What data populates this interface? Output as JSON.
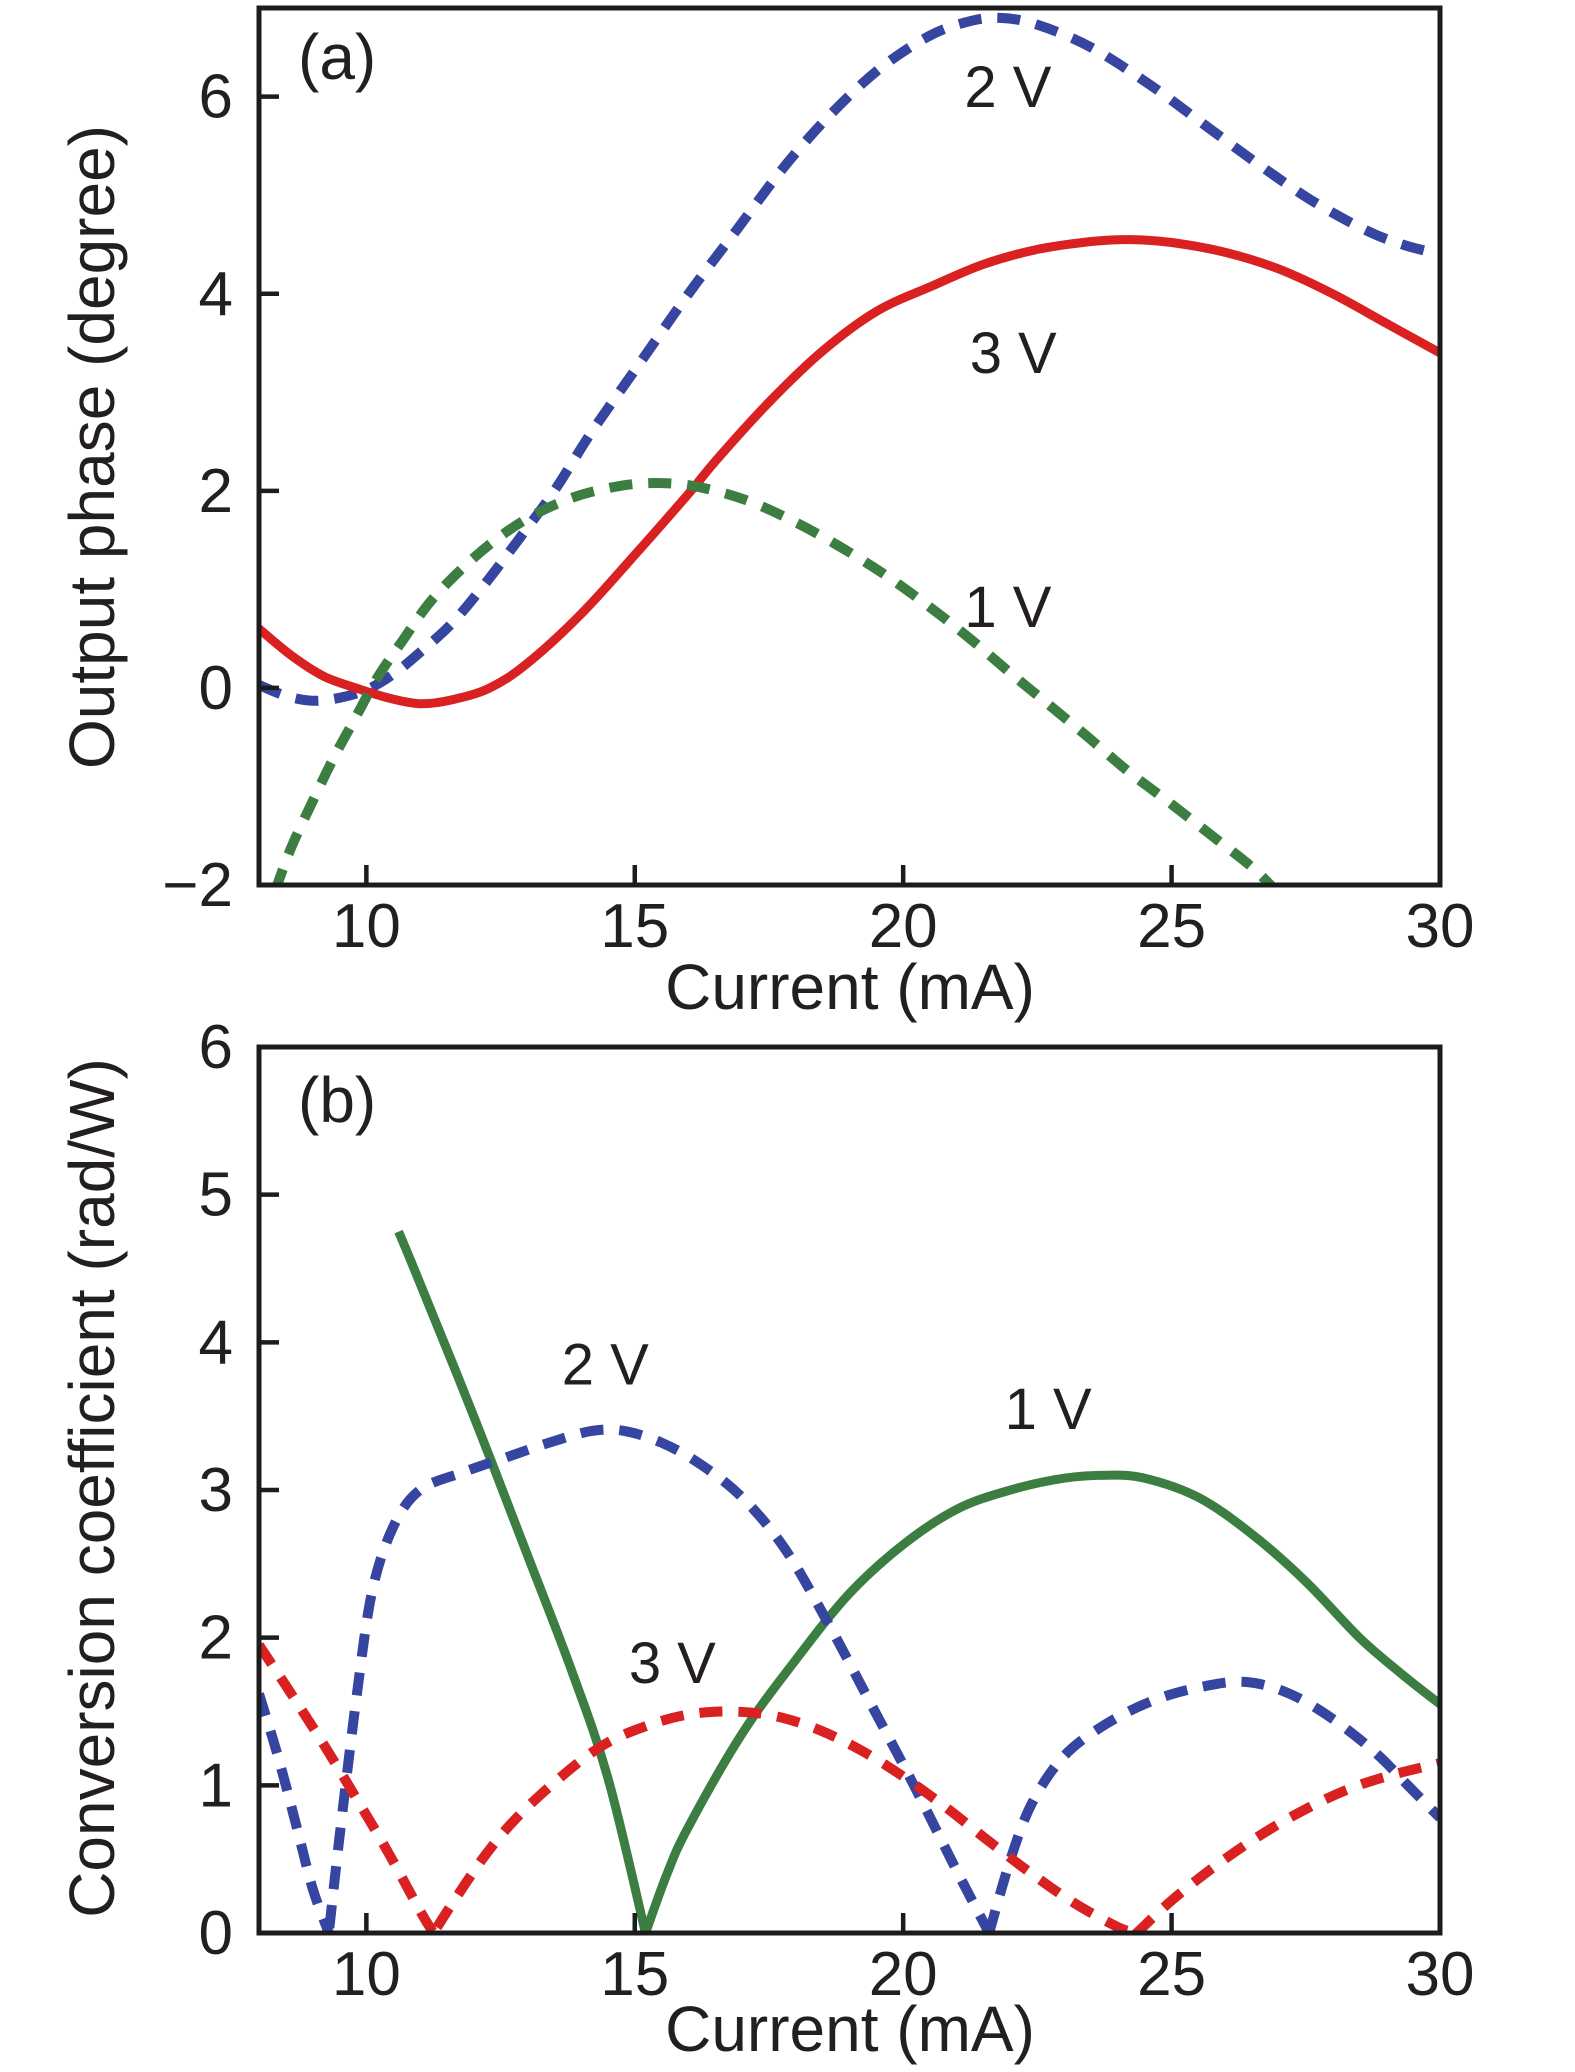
{
  "chart_data": [
    {
      "type": "line",
      "panel_label": "(a)",
      "xlabel": "Current (mA)",
      "ylabel": "Output phase (degree)",
      "xlim": [
        8,
        30
      ],
      "ylim": [
        -2,
        6.9
      ],
      "xticks": [
        10,
        15,
        20,
        25,
        30
      ],
      "xtick_labels": [
        "10",
        "15",
        "20",
        "25",
        "30"
      ],
      "yticks": [
        -2,
        0,
        2,
        4,
        6
      ],
      "ytick_labels": [
        "−2",
        "0",
        "2",
        "4",
        "6"
      ],
      "grid": false,
      "legend": "inline-annotations",
      "series": [
        {
          "name": "2 V",
          "color": "#3645a0",
          "dashed": true,
          "points": [
            [
              8,
              0.03
            ],
            [
              8.5,
              -0.08
            ],
            [
              9,
              -0.13
            ],
            [
              9.5,
              -0.1
            ],
            [
              10,
              -0.02
            ],
            [
              10.5,
              0.14
            ],
            [
              11,
              0.36
            ],
            [
              11.6,
              0.66
            ],
            [
              12.2,
              1.05
            ],
            [
              12.8,
              1.48
            ],
            [
              13.5,
              2.0
            ],
            [
              14.2,
              2.6
            ],
            [
              15.1,
              3.3
            ],
            [
              16,
              4.0
            ],
            [
              16.9,
              4.65
            ],
            [
              17.8,
              5.3
            ],
            [
              18.7,
              5.85
            ],
            [
              19.6,
              6.3
            ],
            [
              20.5,
              6.62
            ],
            [
              21.2,
              6.76
            ],
            [
              21.8,
              6.8
            ],
            [
              22.5,
              6.73
            ],
            [
              23.5,
              6.5
            ],
            [
              24.6,
              6.12
            ],
            [
              25.6,
              5.72
            ],
            [
              26.6,
              5.32
            ],
            [
              27.6,
              4.95
            ],
            [
              28.6,
              4.65
            ],
            [
              29.3,
              4.5
            ],
            [
              30,
              4.4
            ]
          ]
        },
        {
          "name": "3 V",
          "color": "#d92121",
          "dashed": false,
          "points": [
            [
              8,
              0.6
            ],
            [
              8.6,
              0.33
            ],
            [
              9.2,
              0.12
            ],
            [
              9.8,
              0
            ],
            [
              10.4,
              -0.1
            ],
            [
              11,
              -0.16
            ],
            [
              11.6,
              -0.12
            ],
            [
              12.3,
              0
            ],
            [
              13,
              0.25
            ],
            [
              14,
              0.75
            ],
            [
              15,
              1.35
            ],
            [
              16,
              1.97
            ],
            [
              16.5,
              2.3
            ],
            [
              17.5,
              2.9
            ],
            [
              18.5,
              3.42
            ],
            [
              19.5,
              3.82
            ],
            [
              20.5,
              4.07
            ],
            [
              21.5,
              4.3
            ],
            [
              22.5,
              4.45
            ],
            [
              23.5,
              4.53
            ],
            [
              24.2,
              4.55
            ],
            [
              25,
              4.52
            ],
            [
              26,
              4.42
            ],
            [
              27,
              4.25
            ],
            [
              28,
              4.0
            ],
            [
              29,
              3.7
            ],
            [
              30,
              3.4
            ]
          ]
        },
        {
          "name": "1 V",
          "color": "#3c7e42",
          "dashed": true,
          "points": [
            [
              8.3,
              -2.06
            ],
            [
              8.6,
              -1.62
            ],
            [
              9,
              -1.15
            ],
            [
              9.4,
              -0.7
            ],
            [
              9.8,
              -0.3
            ],
            [
              10.2,
              0.1
            ],
            [
              10.7,
              0.5
            ],
            [
              11.2,
              0.88
            ],
            [
              11.8,
              1.22
            ],
            [
              12.4,
              1.5
            ],
            [
              13,
              1.72
            ],
            [
              13.6,
              1.88
            ],
            [
              14.2,
              1.99
            ],
            [
              15,
              2.07
            ],
            [
              15.8,
              2.07
            ],
            [
              16.5,
              2.0
            ],
            [
              17.2,
              1.88
            ],
            [
              18,
              1.68
            ],
            [
              18.8,
              1.44
            ],
            [
              19.6,
              1.17
            ],
            [
              20.4,
              0.86
            ],
            [
              21.2,
              0.52
            ],
            [
              22,
              0.15
            ],
            [
              22.6,
              -0.12
            ],
            [
              23.4,
              -0.48
            ],
            [
              24.2,
              -0.85
            ],
            [
              25,
              -1.18
            ],
            [
              25.8,
              -1.52
            ],
            [
              26.5,
              -1.82
            ],
            [
              26.95,
              -2.06
            ]
          ]
        }
      ],
      "annotations": [
        {
          "text": "2 V",
          "x": 21.95,
          "y": 6.1
        },
        {
          "text": "3 V",
          "x": 22.05,
          "y": 3.4
        },
        {
          "text": "1 V",
          "x": 21.95,
          "y": 0.82
        }
      ]
    },
    {
      "type": "line",
      "panel_label": "(b)",
      "xlabel": "Current (mA)",
      "ylabel": "Conversion coefficient (rad/W)",
      "xlim": [
        8,
        30
      ],
      "ylim": [
        0,
        6
      ],
      "xticks": [
        10,
        15,
        20,
        25,
        30
      ],
      "xtick_labels": [
        "10",
        "15",
        "20",
        "25",
        "30"
      ],
      "yticks": [
        0,
        1,
        2,
        3,
        4,
        5,
        6
      ],
      "ytick_labels": [
        "0",
        "1",
        "2",
        "3",
        "4",
        "5",
        "6"
      ],
      "grid": false,
      "legend": "inline-annotations",
      "series": [
        {
          "name": "1 V",
          "color": "#3c7e42",
          "dashed": false,
          "points": [
            [
              10.6,
              4.75
            ],
            [
              11,
              4.4
            ],
            [
              12,
              3.5
            ],
            [
              13,
              2.56
            ],
            [
              13.8,
              1.8
            ],
            [
              14.5,
              1.05
            ],
            [
              15.2,
              0
            ],
            [
              15.2,
              0
            ],
            [
              15.6,
              0.4
            ],
            [
              16,
              0.72
            ],
            [
              17,
              1.35
            ],
            [
              18,
              1.85
            ],
            [
              19,
              2.3
            ],
            [
              20,
              2.63
            ],
            [
              21,
              2.87
            ],
            [
              22,
              3.0
            ],
            [
              23,
              3.08
            ],
            [
              23.8,
              3.1
            ],
            [
              24.5,
              3.08
            ],
            [
              25.5,
              2.95
            ],
            [
              26.5,
              2.7
            ],
            [
              27.5,
              2.38
            ],
            [
              28.5,
              2.0
            ],
            [
              29.3,
              1.75
            ],
            [
              30,
              1.55
            ]
          ]
        },
        {
          "name": "2 V",
          "color": "#3645a0",
          "dashed": true,
          "points": [
            [
              8,
              1.62
            ],
            [
              8.35,
              1.2
            ],
            [
              8.7,
              0.72
            ],
            [
              9.0,
              0.3
            ],
            [
              9.3,
              0
            ],
            [
              9.3,
              0
            ],
            [
              9.5,
              0.65
            ],
            [
              9.8,
              1.55
            ],
            [
              10.1,
              2.3
            ],
            [
              10.5,
              2.75
            ],
            [
              11,
              3.0
            ],
            [
              11.8,
              3.12
            ],
            [
              12.6,
              3.22
            ],
            [
              13.4,
              3.32
            ],
            [
              14.2,
              3.4
            ],
            [
              14.8,
              3.4
            ],
            [
              15.5,
              3.32
            ],
            [
              16.2,
              3.18
            ],
            [
              17,
              2.95
            ],
            [
              17.8,
              2.6
            ],
            [
              18.6,
              2.1
            ],
            [
              19.4,
              1.55
            ],
            [
              20.2,
              1.0
            ],
            [
              21,
              0.42
            ],
            [
              21.6,
              0
            ],
            [
              21.6,
              0
            ],
            [
              22,
              0.5
            ],
            [
              22.4,
              0.88
            ],
            [
              23,
              1.2
            ],
            [
              23.8,
              1.42
            ],
            [
              24.7,
              1.58
            ],
            [
              25.6,
              1.67
            ],
            [
              26.4,
              1.7
            ],
            [
              27.2,
              1.62
            ],
            [
              28,
              1.45
            ],
            [
              28.8,
              1.22
            ],
            [
              29.4,
              1.0
            ],
            [
              30,
              0.78
            ]
          ]
        },
        {
          "name": "3 V",
          "color": "#d92121",
          "dashed": true,
          "points": [
            [
              8,
              1.95
            ],
            [
              8.6,
              1.62
            ],
            [
              9.2,
              1.28
            ],
            [
              9.8,
              0.92
            ],
            [
              10.4,
              0.55
            ],
            [
              11,
              0.15
            ],
            [
              11.25,
              0
            ],
            [
              11.25,
              0
            ],
            [
              11.6,
              0.2
            ],
            [
              12.2,
              0.52
            ],
            [
              12.8,
              0.78
            ],
            [
              13.6,
              1.05
            ],
            [
              14.4,
              1.27
            ],
            [
              15.2,
              1.4
            ],
            [
              16,
              1.48
            ],
            [
              16.8,
              1.5
            ],
            [
              17.6,
              1.47
            ],
            [
              18.4,
              1.38
            ],
            [
              19.2,
              1.24
            ],
            [
              20,
              1.06
            ],
            [
              20.8,
              0.85
            ],
            [
              21.6,
              0.62
            ],
            [
              22.4,
              0.4
            ],
            [
              23.2,
              0.2
            ],
            [
              24,
              0.04
            ],
            [
              24.35,
              0
            ],
            [
              24.35,
              0
            ],
            [
              25,
              0.22
            ],
            [
              25.8,
              0.45
            ],
            [
              26.6,
              0.65
            ],
            [
              27.4,
              0.82
            ],
            [
              28.2,
              0.96
            ],
            [
              29,
              1.06
            ],
            [
              30,
              1.15
            ]
          ]
        }
      ],
      "annotations": [
        {
          "text": "2 V",
          "x": 14.45,
          "y": 3.85
        },
        {
          "text": "3 V",
          "x": 15.7,
          "y": 1.83
        },
        {
          "text": "1 V",
          "x": 22.7,
          "y": 3.55
        }
      ]
    }
  ],
  "style": {
    "axis_color": "#1c1c1c",
    "text_color": "#231f20",
    "background": "#ffffff"
  }
}
